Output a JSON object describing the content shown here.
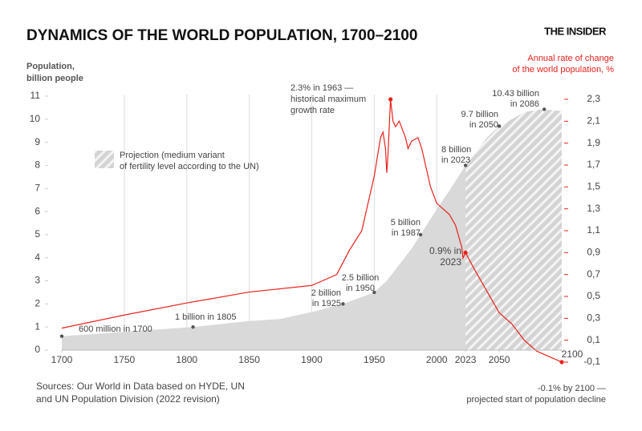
{
  "chart_data": {
    "type": "area",
    "title": "DYNAMICS OF THE WORLD POPULATION, 1700–2100",
    "brand": "THE INSIDER",
    "ylabel": [
      "Population,",
      "billion people"
    ],
    "y2label": [
      "Annual rate of change",
      "of the world population, %"
    ],
    "legend": [
      "Projection (medium variant",
      "of fertility level according to the UN)"
    ],
    "source": [
      "Sources: Our World in Data based on HYDE, UN",
      "and UN Population Division (2022 revision)"
    ],
    "projection_start": 2023,
    "xlim": [
      1700,
      2100
    ],
    "xticks": [
      1700,
      1750,
      1800,
      1850,
      1900,
      1950,
      2000,
      2023,
      2050,
      2100
    ],
    "ylim": [
      0,
      11
    ],
    "yticks": [
      0,
      1,
      2,
      3,
      4,
      5,
      6,
      7,
      8,
      9,
      10,
      11
    ],
    "y2lim": [
      -0.1,
      2.3
    ],
    "y2ticks": [
      {
        "value": 2.3,
        "label": "2,3"
      },
      {
        "value": 2.1,
        "label": "2,1"
      },
      {
        "value": 1.9,
        "label": "1,9"
      },
      {
        "value": 1.7,
        "label": "1,7"
      },
      {
        "value": 1.5,
        "label": "1,5"
      },
      {
        "value": 1.3,
        "label": "1,3"
      },
      {
        "value": 1.1,
        "label": "1,1"
      },
      {
        "value": 0.9,
        "label": "0,9"
      },
      {
        "value": 0.7,
        "label": "0,7"
      },
      {
        "value": 0.5,
        "label": "0,5"
      },
      {
        "value": 0.3,
        "label": "0,3"
      },
      {
        "value": 0.1,
        "label": "0,1"
      },
      {
        "value": -0.1,
        "label": "-0,1"
      }
    ],
    "grid": true,
    "series": [
      {
        "type": "area",
        "color": "#d9d9d9",
        "x": [
          1700,
          1750,
          1800,
          1805,
          1850,
          1875,
          1900,
          1925,
          1950,
          1960,
          1970,
          1980,
          1987,
          2000,
          2010,
          2023,
          2030,
          2040,
          2050,
          2060,
          2070,
          2080,
          2086,
          2090,
          2100
        ],
        "values": [
          0.6,
          0.79,
          0.98,
          1.0,
          1.26,
          1.35,
          1.65,
          2.0,
          2.5,
          3.0,
          3.7,
          4.4,
          5.0,
          6.1,
          6.9,
          8.0,
          8.5,
          9.2,
          9.7,
          10.0,
          10.3,
          10.4,
          10.43,
          10.4,
          10.35
        ]
      },
      {
        "type": "line",
        "color": "#e8221b",
        "axis": "y2",
        "x": [
          1700,
          1750,
          1800,
          1850,
          1900,
          1910,
          1920,
          1930,
          1940,
          1950,
          1955,
          1957,
          1959,
          1960,
          1961,
          1963,
          1965,
          1967,
          1970,
          1975,
          1977,
          1980,
          1985,
          1988,
          1990,
          1995,
          2000,
          2005,
          2010,
          2015,
          2020,
          2021,
          2023,
          2030,
          2040,
          2050,
          2060,
          2070,
          2080,
          2090,
          2100
        ],
        "values": [
          0.21,
          0.33,
          0.44,
          0.54,
          0.6,
          0.65,
          0.7,
          0.92,
          1.1,
          1.6,
          1.95,
          2.0,
          1.85,
          1.63,
          1.8,
          2.3,
          2.1,
          2.05,
          2.1,
          1.95,
          1.85,
          1.92,
          1.95,
          1.85,
          1.75,
          1.5,
          1.35,
          1.3,
          1.25,
          1.15,
          0.95,
          0.85,
          0.9,
          0.75,
          0.55,
          0.35,
          0.25,
          0.1,
          0.0,
          -0.05,
          -0.1
        ]
      }
    ],
    "annotations": [
      [
        "600 million in 1700"
      ],
      [
        "1 billion in 1805"
      ],
      [
        "2 billion",
        "in 1925"
      ],
      [
        "2.5 billion",
        "in 1950"
      ],
      [
        "5 billion",
        "in 1987"
      ],
      [
        "8 billion",
        "in 2023"
      ],
      [
        "9.7 billion",
        "in 2050"
      ],
      [
        "10.43 billion",
        "in 2086"
      ]
    ],
    "rate_annotations": [
      [
        "2.3% in 1963 —",
        "historical maximum",
        "growth rate"
      ],
      [
        "0.9% in",
        "2023"
      ],
      [
        "-0.1% by 2100 —",
        "projected start of population decline"
      ]
    ]
  }
}
